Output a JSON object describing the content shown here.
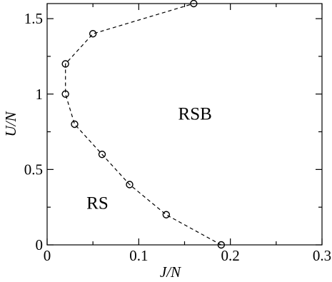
{
  "chart_data": {
    "type": "scatter",
    "title": "",
    "xlabel": "J/N",
    "ylabel": "U/N",
    "xlim": [
      0,
      0.3
    ],
    "ylim": [
      0,
      1.6
    ],
    "grid": false,
    "x_tick_labels": [
      "0",
      "0.1",
      "0.2",
      "0.3"
    ],
    "y_tick_labels": [
      "0",
      "0.5",
      "1",
      "1.5"
    ],
    "x_ticks": [
      0,
      0.1,
      0.2,
      0.3
    ],
    "y_ticks": [
      0,
      0.5,
      1.0,
      1.5
    ],
    "series": [
      {
        "style": "dashed-line-with-open-circles",
        "color": "#000000",
        "x": [
          0.19,
          0.13,
          0.09,
          0.06,
          0.03,
          0.02,
          0.02,
          0.05,
          0.16
        ],
        "y": [
          0.0,
          0.2,
          0.4,
          0.6,
          0.8,
          1.0,
          1.2,
          1.4,
          1.6
        ]
      }
    ],
    "annotations": [
      {
        "text": "RSB",
        "x": 0.143,
        "y": 0.83
      },
      {
        "text": "RS",
        "x": 0.043,
        "y": 0.24
      }
    ]
  }
}
